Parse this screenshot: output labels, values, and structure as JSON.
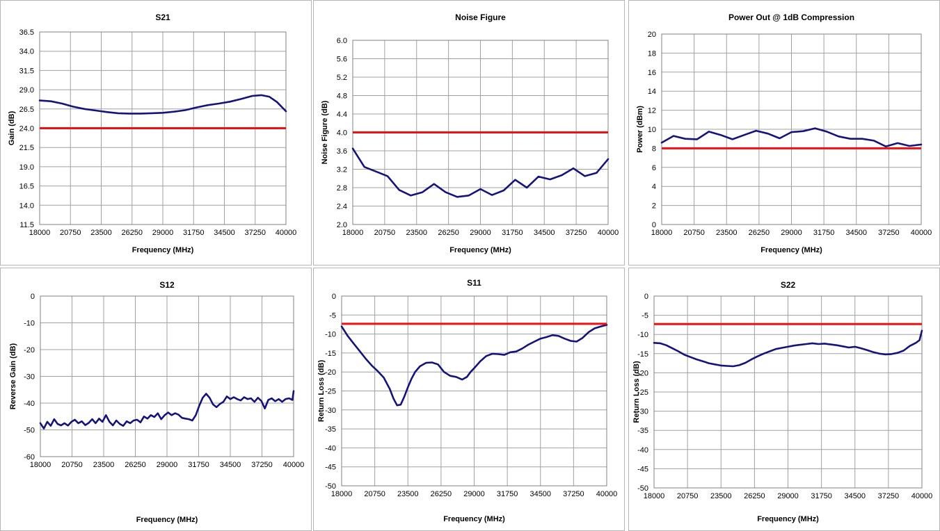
{
  "colors": {
    "data_line": "#14147a",
    "limit_line": "#ee1111",
    "grid": "#a0a0a0"
  },
  "chart_data": [
    {
      "id": "s21",
      "type": "line",
      "title": "S21",
      "xlabel": "Frequency (MHz)",
      "ylabel": "Gain (dB)",
      "xlim": [
        18000,
        40000
      ],
      "ylim": [
        11.5,
        36.5
      ],
      "xticks": [
        "18000",
        "20750",
        "23500",
        "26250",
        "29000",
        "31750",
        "34500",
        "37250",
        "40000"
      ],
      "yticks": [
        "11.5",
        "14.0",
        "16.5",
        "19.0",
        "21.5",
        "24.0",
        "26.5",
        "29.0",
        "31.5",
        "34.0",
        "36.5"
      ],
      "limit": 24.0,
      "x": [
        18000,
        19000,
        20000,
        21000,
        22000,
        23000,
        24000,
        25000,
        26000,
        27000,
        28000,
        29000,
        30000,
        31000,
        32000,
        33000,
        34000,
        35000,
        36000,
        37000,
        37800,
        38500,
        39200,
        40000
      ],
      "y": [
        27.6,
        27.5,
        27.2,
        26.8,
        26.5,
        26.3,
        26.1,
        25.95,
        25.9,
        25.9,
        25.95,
        26.0,
        26.15,
        26.35,
        26.7,
        27.0,
        27.2,
        27.45,
        27.8,
        28.2,
        28.3,
        28.1,
        27.4,
        26.2
      ]
    },
    {
      "id": "nf",
      "type": "line",
      "title": "Noise Figure",
      "xlabel": "Frequency (MHz)",
      "ylabel": "Noise Figure (dB)",
      "xlim": [
        18000,
        40000
      ],
      "ylim": [
        2.0,
        6.0
      ],
      "xticks": [
        "18000",
        "20750",
        "23500",
        "26250",
        "29000",
        "31750",
        "34500",
        "37250",
        "40000"
      ],
      "yticks": [
        "2.0",
        "2.4",
        "2.8",
        "3.2",
        "3.6",
        "4.0",
        "4.4",
        "4.8",
        "5.2",
        "5.6",
        "6.0"
      ],
      "limit": 4.0,
      "x": [
        18000,
        19000,
        20000,
        21000,
        22000,
        23000,
        24000,
        25000,
        26000,
        27000,
        28000,
        29000,
        30000,
        31000,
        32000,
        33000,
        34000,
        35000,
        36000,
        37000,
        38000,
        39000,
        40000
      ],
      "y": [
        3.65,
        3.25,
        3.15,
        3.05,
        2.75,
        2.63,
        2.7,
        2.88,
        2.7,
        2.6,
        2.63,
        2.77,
        2.64,
        2.74,
        2.97,
        2.8,
        3.04,
        2.98,
        3.07,
        3.22,
        3.05,
        3.12,
        3.42
      ]
    },
    {
      "id": "p1db",
      "type": "line",
      "title": "Power Out @ 1dB Compression",
      "xlabel": "Frequency (MHz)",
      "ylabel": "Power (dBm)",
      "xlim": [
        18000,
        40000
      ],
      "ylim": [
        0,
        20
      ],
      "xticks": [
        "18000",
        "20750",
        "23500",
        "26250",
        "29000",
        "31750",
        "34500",
        "37250",
        "40000"
      ],
      "yticks": [
        "0",
        "2",
        "4",
        "6",
        "8",
        "10",
        "12",
        "14",
        "16",
        "18",
        "20"
      ],
      "limit": 8,
      "x": [
        18000,
        19000,
        20000,
        21000,
        22000,
        23000,
        24000,
        25000,
        26000,
        27000,
        28000,
        29000,
        30000,
        31000,
        32000,
        33000,
        34000,
        35000,
        36000,
        37000,
        38000,
        39000,
        40000
      ],
      "y": [
        8.6,
        9.3,
        9.0,
        8.95,
        9.75,
        9.4,
        8.95,
        9.4,
        9.85,
        9.55,
        9.05,
        9.7,
        9.8,
        10.1,
        9.75,
        9.25,
        9.0,
        9.0,
        8.8,
        8.2,
        8.55,
        8.25,
        8.4
      ]
    },
    {
      "id": "s12",
      "type": "line",
      "title": "S12",
      "xlabel": "Frequency (MHz)",
      "ylabel": "Reverse Gain (dB)",
      "xlim": [
        18000,
        40000
      ],
      "ylim": [
        -60,
        0
      ],
      "xticks": [
        "18000",
        "20750",
        "23500",
        "26250",
        "29000",
        "31750",
        "34500",
        "37250",
        "40000"
      ],
      "yticks": [
        "-60",
        "-50",
        "-40",
        "-30",
        "-20",
        "-10",
        "0"
      ],
      "x": [
        18000,
        18300,
        18600,
        18900,
        19200,
        19500,
        19800,
        20100,
        20400,
        20700,
        21000,
        21300,
        21600,
        21900,
        22200,
        22500,
        22800,
        23100,
        23400,
        23700,
        24000,
        24300,
        24600,
        24900,
        25200,
        25500,
        25800,
        26100,
        26400,
        26700,
        27000,
        27300,
        27600,
        27900,
        28200,
        28500,
        28800,
        29100,
        29400,
        29700,
        30000,
        30300,
        30600,
        30900,
        31200,
        31500,
        31800,
        32100,
        32400,
        32700,
        33000,
        33300,
        33600,
        33900,
        34200,
        34500,
        34800,
        35100,
        35400,
        35700,
        36000,
        36300,
        36600,
        36900,
        37200,
        37500,
        37800,
        38100,
        38400,
        38700,
        39000,
        39300,
        39600,
        39900,
        40000
      ],
      "y": [
        -47.5,
        -49.5,
        -47,
        -48.5,
        -46,
        -47.8,
        -48.3,
        -47.5,
        -48.4,
        -47,
        -46.2,
        -47.5,
        -46.8,
        -48.2,
        -47.4,
        -46,
        -47.5,
        -45.8,
        -47,
        -44.5,
        -47,
        -48.3,
        -46.5,
        -47.8,
        -48.5,
        -46.8,
        -47.5,
        -46.5,
        -46.2,
        -47.2,
        -45,
        -45.8,
        -44.5,
        -45.2,
        -43.8,
        -46,
        -44.5,
        -43.5,
        -44.5,
        -43.8,
        -44.3,
        -45.5,
        -45.8,
        -46,
        -46.5,
        -44.5,
        -41,
        -38,
        -36.5,
        -38,
        -40.5,
        -41.5,
        -40.3,
        -39.5,
        -37.5,
        -38.5,
        -37.8,
        -38.5,
        -39,
        -37.8,
        -38.5,
        -38.2,
        -39.5,
        -38,
        -39.2,
        -42,
        -38.8,
        -38.2,
        -39.3,
        -38.5,
        -39.5,
        -38.5,
        -38.2,
        -38.8,
        -35.5
      ]
    },
    {
      "id": "s11",
      "type": "line",
      "title": "S11",
      "xlabel": "Frequency (MHz)",
      "ylabel": "Return Loss (dB)",
      "xlim": [
        18000,
        40000
      ],
      "ylim": [
        -50,
        0
      ],
      "xticks": [
        "18000",
        "20750",
        "23500",
        "26250",
        "29000",
        "31750",
        "34500",
        "37250",
        "40000"
      ],
      "yticks": [
        "-50",
        "-45",
        "-40",
        "-35",
        "-30",
        "-25",
        "-20",
        "-15",
        "-10",
        "-5",
        "0"
      ],
      "limit": -7.3,
      "x": [
        18000,
        18500,
        19000,
        19500,
        20000,
        20500,
        21000,
        21500,
        22000,
        22300,
        22600,
        22900,
        23200,
        23500,
        23800,
        24100,
        24500,
        25000,
        25500,
        26000,
        26500,
        27000,
        27500,
        28000,
        28400,
        28700,
        29000,
        29500,
        30000,
        30500,
        31000,
        31500,
        32000,
        32500,
        33000,
        33500,
        34000,
        34500,
        35000,
        35500,
        36000,
        36500,
        37000,
        37500,
        38000,
        38500,
        39000,
        39500,
        40000
      ],
      "y": [
        -8.0,
        -10.5,
        -12.5,
        -14.5,
        -16.5,
        -18.3,
        -19.8,
        -21.5,
        -24.5,
        -27,
        -28.8,
        -28.6,
        -26.5,
        -24,
        -21.8,
        -20,
        -18.5,
        -17.6,
        -17.5,
        -18,
        -20,
        -21,
        -21.3,
        -22,
        -21.3,
        -20,
        -19,
        -17.2,
        -15.8,
        -15.2,
        -15.3,
        -15.5,
        -14.8,
        -14.6,
        -13.8,
        -12.8,
        -12,
        -11.2,
        -10.8,
        -10.3,
        -10.5,
        -11.2,
        -11.8,
        -12,
        -11,
        -9.5,
        -8.5,
        -8,
        -7.6
      ]
    },
    {
      "id": "s22",
      "type": "line",
      "title": "S22",
      "xlabel": "Frequency (MHz)",
      "ylabel": "Return Loss (dB)",
      "xlim": [
        18000,
        40000
      ],
      "ylim": [
        -50,
        0
      ],
      "xticks": [
        "18000",
        "20750",
        "23500",
        "26250",
        "29000",
        "31750",
        "34500",
        "37250",
        "40000"
      ],
      "yticks": [
        "-50",
        "-45",
        "-40",
        "-35",
        "-30",
        "-25",
        "-20",
        "-15",
        "-10",
        "-5",
        "0"
      ],
      "limit": -7.3,
      "x": [
        18000,
        18500,
        19000,
        19500,
        20000,
        20500,
        21000,
        21500,
        22000,
        22500,
        23000,
        23500,
        24000,
        24500,
        25000,
        25500,
        26000,
        26500,
        27000,
        27500,
        28000,
        28500,
        29000,
        29500,
        30000,
        30500,
        31000,
        31500,
        32000,
        32500,
        33000,
        33500,
        34000,
        34500,
        35000,
        35500,
        36000,
        36500,
        37000,
        37500,
        38000,
        38500,
        39000,
        39500,
        39800,
        40000
      ],
      "y": [
        -12.2,
        -12.3,
        -12.8,
        -13.6,
        -14.4,
        -15.3,
        -15.9,
        -16.5,
        -17,
        -17.5,
        -17.8,
        -18.1,
        -18.2,
        -18.3,
        -18,
        -17.4,
        -16.5,
        -15.7,
        -15,
        -14.4,
        -13.8,
        -13.5,
        -13.2,
        -12.9,
        -12.7,
        -12.5,
        -12.3,
        -12.5,
        -12.4,
        -12.6,
        -12.8,
        -13.1,
        -13.4,
        -13.2,
        -13.6,
        -14.1,
        -14.6,
        -15,
        -15.2,
        -15.1,
        -14.8,
        -14.2,
        -13,
        -12.2,
        -11.5,
        -9
      ]
    }
  ]
}
